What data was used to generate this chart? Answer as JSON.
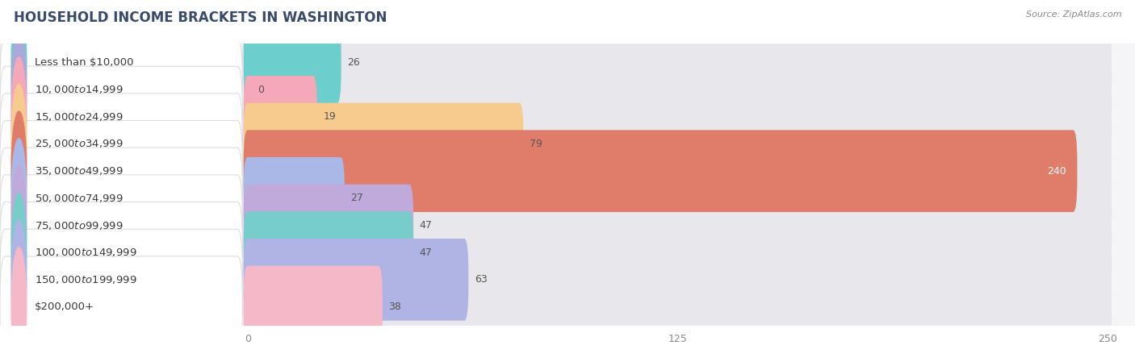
{
  "title": "HOUSEHOLD INCOME BRACKETS IN WASHINGTON",
  "source": "Source: ZipAtlas.com",
  "categories": [
    "Less than $10,000",
    "$10,000 to $14,999",
    "$15,000 to $24,999",
    "$25,000 to $34,999",
    "$35,000 to $49,999",
    "$50,000 to $74,999",
    "$75,000 to $99,999",
    "$100,000 to $149,999",
    "$150,000 to $199,999",
    "$200,000+"
  ],
  "values": [
    26,
    0,
    19,
    79,
    240,
    27,
    47,
    47,
    63,
    38
  ],
  "bar_colors": [
    "#6dcece",
    "#a9aad9",
    "#f5a8b8",
    "#f7ca8e",
    "#e07c6a",
    "#aab8e8",
    "#c0aadc",
    "#76cdca",
    "#b0b4e4",
    "#f4b8c8"
  ],
  "dot_colors": [
    "#6dcece",
    "#a9aad9",
    "#f5a8b8",
    "#f7ca8e",
    "#e07c6a",
    "#aab8e8",
    "#c0aadc",
    "#76cdca",
    "#b0b4e4",
    "#f4b8c8"
  ],
  "bg_bar_color": "#e8e8ec",
  "row_bg_color": "#f5f5f7",
  "label_bg_color": "#ffffff",
  "xlim_data": [
    0,
    250
  ],
  "xticks": [
    0,
    125,
    250
  ],
  "background_color": "#ffffff",
  "title_fontsize": 12,
  "label_fontsize": 9.5,
  "value_fontsize": 9,
  "title_color": "#3a4a6b",
  "source_color": "#888888",
  "tick_color": "#888888",
  "value_color_inside": "#ffffff",
  "value_color_outside": "#555555"
}
